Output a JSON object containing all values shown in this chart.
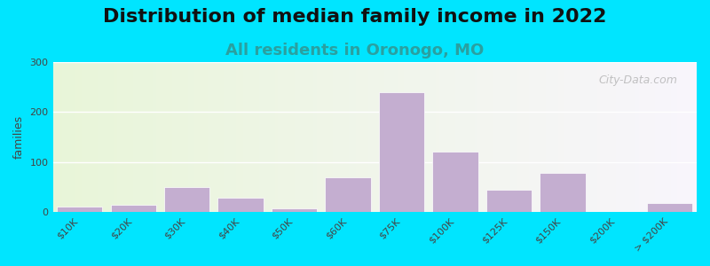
{
  "title": "Distribution of median family income in 2022",
  "subtitle": "All residents in Oronogo, MO",
  "xlabel": "",
  "ylabel": "families",
  "categories": [
    "$10K",
    "$20K",
    "$30K",
    "$40K",
    "$50K",
    "$60K",
    "$75K",
    "$100K",
    "$125K",
    "$150K",
    "$200K",
    "> $200K"
  ],
  "values": [
    10,
    15,
    50,
    28,
    8,
    70,
    240,
    120,
    45,
    78,
    0,
    18
  ],
  "bar_color": "#c4aed0",
  "bar_edge_color": "#c4aed0",
  "bg_outer": "#00e5ff",
  "bg_plot_left": "#d8ecc8",
  "bg_plot_right": "#f5f0f8",
  "ylim": [
    0,
    300
  ],
  "yticks": [
    0,
    100,
    200,
    300
  ],
  "title_fontsize": 16,
  "subtitle_fontsize": 13,
  "subtitle_color": "#2aa0a0",
  "watermark": "City-Data.com"
}
